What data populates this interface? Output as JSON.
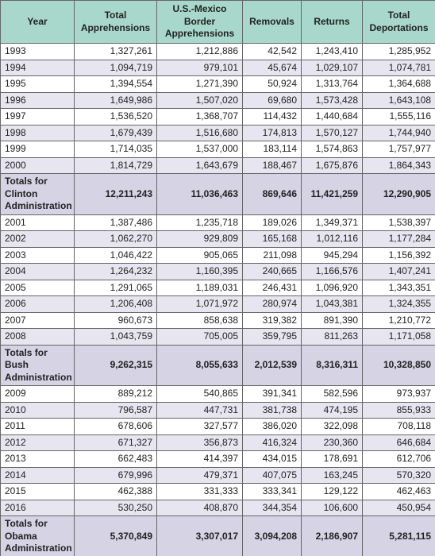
{
  "table": {
    "header": [
      "Year",
      "Total Apprehensions",
      "U.S.-Mexico Border Apprehensions",
      "Removals",
      "Returns",
      "Total Deportations"
    ],
    "sections": [
      {
        "rows": [
          [
            "1993",
            "1,327,261",
            "1,212,886",
            "42,542",
            "1,243,410",
            "1,285,952"
          ],
          [
            "1994",
            "1,094,719",
            "979,101",
            "45,674",
            "1,029,107",
            "1,074,781"
          ],
          [
            "1995",
            "1,394,554",
            "1,271,390",
            "50,924",
            "1,313,764",
            "1,364,688"
          ],
          [
            "1996",
            "1,649,986",
            "1,507,020",
            "69,680",
            "1,573,428",
            "1,643,108"
          ],
          [
            "1997",
            "1,536,520",
            "1,368,707",
            "114,432",
            "1,440,684",
            "1,555,116"
          ],
          [
            "1998",
            "1,679,439",
            "1,516,680",
            "174,813",
            "1,570,127",
            "1,744,940"
          ],
          [
            "1999",
            "1,714,035",
            "1,537,000",
            "183,114",
            "1,574,863",
            "1,757,977"
          ],
          [
            "2000",
            "1,814,729",
            "1,643,679",
            "188,467",
            "1,675,876",
            "1,864,343"
          ]
        ],
        "total": [
          "Totals for Clinton Administration",
          "12,211,243",
          "11,036,463",
          "869,646",
          "11,421,259",
          "12,290,905"
        ]
      },
      {
        "rows": [
          [
            "2001",
            "1,387,486",
            "1,235,718",
            "189,026",
            "1,349,371",
            "1,538,397"
          ],
          [
            "2002",
            "1,062,270",
            "929,809",
            "165,168",
            "1,012,116",
            "1,177,284"
          ],
          [
            "2003",
            "1,046,422",
            "905,065",
            "211,098",
            "945,294",
            "1,156,392"
          ],
          [
            "2004",
            "1,264,232",
            "1,160,395",
            "240,665",
            "1,166,576",
            "1,407,241"
          ],
          [
            "2005",
            "1,291,065",
            "1,189,031",
            "246,431",
            "1,096,920",
            "1,343,351"
          ],
          [
            "2006",
            "1,206,408",
            "1,071,972",
            "280,974",
            "1,043,381",
            "1,324,355"
          ],
          [
            "2007",
            "960,673",
            "858,638",
            "319,382",
            "891,390",
            "1,210,772"
          ],
          [
            "2008",
            "1,043,759",
            "705,005",
            "359,795",
            "811,263",
            "1,171,058"
          ]
        ],
        "total": [
          "Totals for Bush Administration",
          "9,262,315",
          "8,055,633",
          "2,012,539",
          "8,316,311",
          "10,328,850"
        ]
      },
      {
        "rows": [
          [
            "2009",
            "889,212",
            "540,865",
            "391,341",
            "582,596",
            "973,937"
          ],
          [
            "2010",
            "796,587",
            "447,731",
            "381,738",
            "474,195",
            "855,933"
          ],
          [
            "2011",
            "678,606",
            "327,577",
            "386,020",
            "322,098",
            "708,118"
          ],
          [
            "2012",
            "671,327",
            "356,873",
            "416,324",
            "230,360",
            "646,684"
          ],
          [
            "2013",
            "662,483",
            "414,397",
            "434,015",
            "178,691",
            "612,706"
          ],
          [
            "2014",
            "679,996",
            "479,371",
            "407,075",
            "163,245",
            "570,320"
          ],
          [
            "2015",
            "462,388",
            "331,333",
            "333,341",
            "129,122",
            "462,463"
          ],
          [
            "2016",
            "530,250",
            "408,870",
            "344,354",
            "106,600",
            "450,954"
          ]
        ],
        "total": [
          "Totals for Obama Administration",
          "5,370,849",
          "3,307,017",
          "3,094,208",
          "2,186,907",
          "5,281,115"
        ]
      }
    ]
  }
}
